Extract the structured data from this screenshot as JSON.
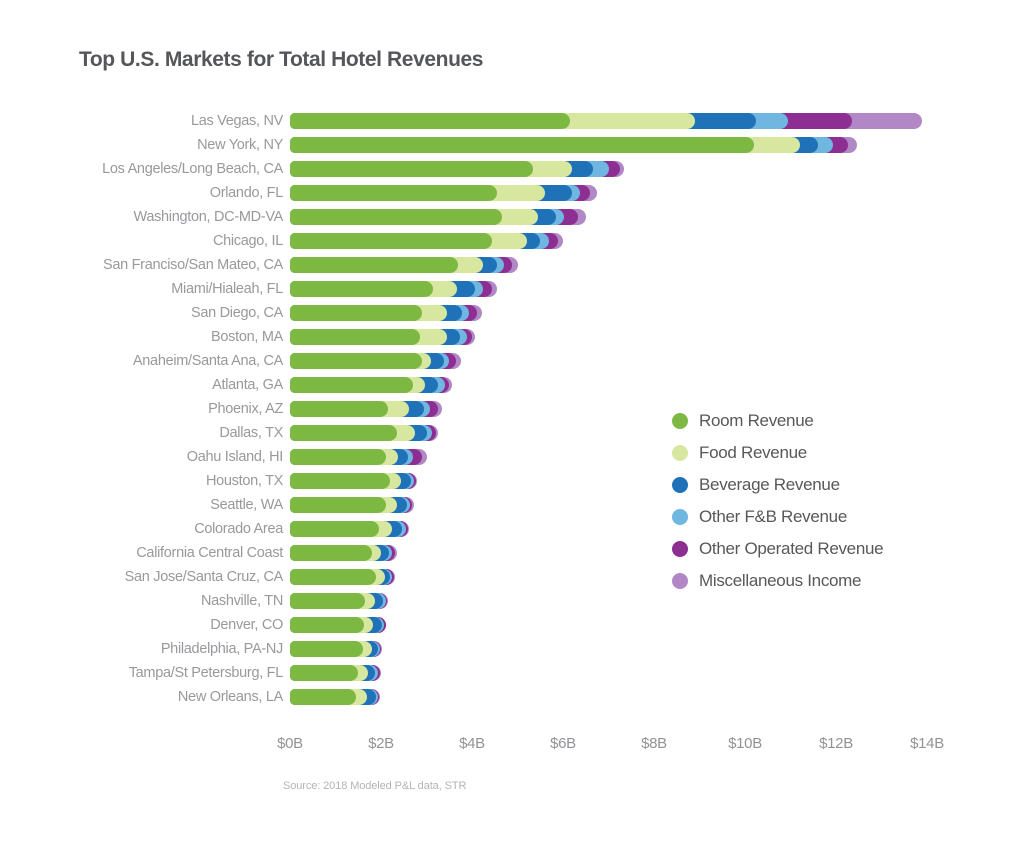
{
  "title": "Top U.S. Markets for Total Hotel Revenues",
  "source": "Source: 2018 Modeled P&L data, STR",
  "axis": {
    "ticks": [
      "$0B",
      "$2B",
      "$4B",
      "$6B",
      "$8B",
      "$10B",
      "$12B",
      "$14B"
    ],
    "max": 14
  },
  "legend": {
    "items": [
      {
        "label": "Room Revenue",
        "color": "#7db843"
      },
      {
        "label": "Food Revenue",
        "color": "#d7e7a0"
      },
      {
        "label": "Beverage Revenue",
        "color": "#1f72b8"
      },
      {
        "label": "Other F&B Revenue",
        "color": "#6fb7e0"
      },
      {
        "label": "Other Operated Revenue",
        "color": "#8c2e92"
      },
      {
        "label": "Miscellaneous Income",
        "color": "#b287c6"
      }
    ]
  },
  "chart_data": {
    "type": "bar",
    "orientation": "horizontal",
    "stacked": true,
    "title": "Top U.S. Markets for Total Hotel Revenues",
    "xlabel": "",
    "ylabel": "",
    "unit": "$B",
    "xlim": [
      0,
      14
    ],
    "x_ticks": [
      "$0B",
      "$2B",
      "$4B",
      "$6B",
      "$8B",
      "$10B",
      "$12B",
      "$14B"
    ],
    "grid": false,
    "legend_position": "middle-right",
    "categories": [
      "Las Vegas, NV",
      "New York, NY",
      "Los Angeles/Long Beach, CA",
      "Orlando, FL",
      "Washington, DC-MD-VA",
      "Chicago, IL",
      "San Franciso/San Mateo, CA",
      "Miami/Hialeah, FL",
      "San Diego, CA",
      "Boston, MA",
      "Anaheim/Santa Ana, CA",
      "Atlanta, GA",
      "Phoenix, AZ",
      "Dallas, TX",
      "Oahu Island, HI",
      "Houston, TX",
      "Seattle, WA",
      "Colorado Area",
      "California Central Coast",
      "San Jose/Santa Cruz, CA",
      "Nashville, TN",
      "Denver, CO",
      "Philadelphia, PA-NJ",
      "Tampa/St Petersburg, FL",
      "New Orleans, LA"
    ],
    "series": [
      {
        "name": "Room Revenue",
        "color": "#7db843",
        "values": [
          6.15,
          10.2,
          5.35,
          4.55,
          4.65,
          4.45,
          3.7,
          3.15,
          2.9,
          2.85,
          2.9,
          2.7,
          2.15,
          2.35,
          2.1,
          2.2,
          2.1,
          1.95,
          1.8,
          1.9,
          1.65,
          1.62,
          1.6,
          1.5,
          1.45
        ]
      },
      {
        "name": "Food Revenue",
        "color": "#d7e7a0",
        "values": [
          2.75,
          1.0,
          0.85,
          1.05,
          0.8,
          0.75,
          0.55,
          0.52,
          0.55,
          0.6,
          0.2,
          0.27,
          0.47,
          0.4,
          0.27,
          0.25,
          0.25,
          0.3,
          0.2,
          0.18,
          0.22,
          0.21,
          0.2,
          0.22,
          0.25
        ]
      },
      {
        "name": "Beverage Revenue",
        "color": "#1f72b8",
        "values": [
          1.35,
          0.4,
          0.45,
          0.6,
          0.4,
          0.3,
          0.3,
          0.4,
          0.33,
          0.29,
          0.28,
          0.28,
          0.33,
          0.25,
          0.23,
          0.2,
          0.22,
          0.22,
          0.18,
          0.12,
          0.18,
          0.19,
          0.13,
          0.15,
          0.18
        ]
      },
      {
        "name": "Other F&B Revenue",
        "color": "#6fb7e0",
        "values": [
          0.7,
          0.33,
          0.35,
          0.18,
          0.18,
          0.2,
          0.15,
          0.17,
          0.16,
          0.15,
          0.12,
          0.15,
          0.13,
          0.12,
          0.1,
          0.07,
          0.07,
          0.08,
          0.07,
          0.05,
          0.05,
          0.05,
          0.05,
          0.06,
          0.05
        ]
      },
      {
        "name": "Other Operated Revenue",
        "color": "#8c2e92",
        "values": [
          1.4,
          0.33,
          0.25,
          0.22,
          0.3,
          0.2,
          0.18,
          0.2,
          0.17,
          0.11,
          0.15,
          0.1,
          0.17,
          0.08,
          0.2,
          0.06,
          0.05,
          0.05,
          0.06,
          0.03,
          0.04,
          0.03,
          0.03,
          0.05,
          0.03
        ]
      },
      {
        "name": "Miscellaneous Income",
        "color": "#b287c6",
        "values": [
          1.55,
          0.2,
          0.1,
          0.15,
          0.17,
          0.1,
          0.12,
          0.11,
          0.12,
          0.07,
          0.1,
          0.05,
          0.1,
          0.05,
          0.1,
          0.02,
          0.03,
          0.02,
          0.04,
          0.02,
          0.02,
          0.02,
          0.02,
          0.02,
          0.02
        ]
      }
    ]
  }
}
